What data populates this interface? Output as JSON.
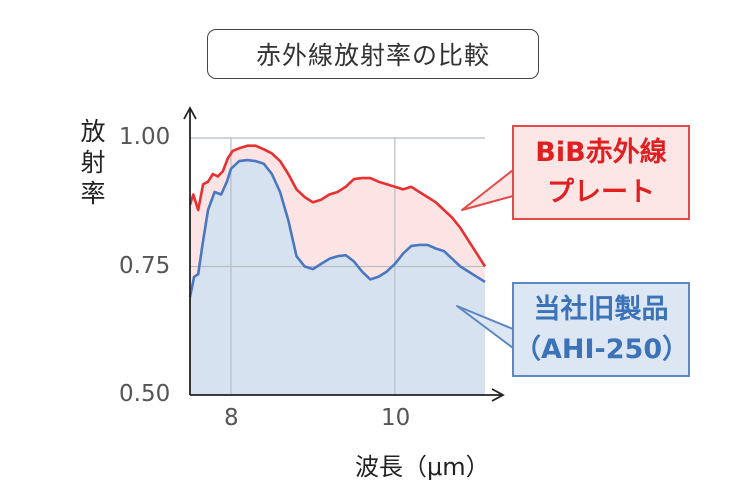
{
  "chart_data": {
    "type": "area",
    "title": "赤外線放射率の比較",
    "ylabel": [
      "放",
      "射",
      "率"
    ],
    "xlabel": "波長（μm）",
    "xlim": [
      7.5,
      11.1
    ],
    "ylim": [
      0.5,
      1.0
    ],
    "x_ticks": [
      {
        "value": 8,
        "label": "8"
      },
      {
        "value": 10,
        "label": "10"
      }
    ],
    "y_ticks": [
      {
        "value": 0.5,
        "label": "0.50"
      },
      {
        "value": 0.75,
        "label": "0.75"
      },
      {
        "value": 1.0,
        "label": "1.00"
      }
    ],
    "grid": true,
    "series": [
      {
        "name_lines": [
          "BiB赤外線",
          "プレート"
        ],
        "color": "#e83030",
        "fill": "#fce4e4",
        "points": [
          [
            7.5,
            0.87
          ],
          [
            7.54,
            0.89
          ],
          [
            7.6,
            0.86
          ],
          [
            7.66,
            0.91
          ],
          [
            7.72,
            0.915
          ],
          [
            7.78,
            0.93
          ],
          [
            7.84,
            0.925
          ],
          [
            7.9,
            0.935
          ],
          [
            7.96,
            0.96
          ],
          [
            8.02,
            0.975
          ],
          [
            8.1,
            0.98
          ],
          [
            8.2,
            0.985
          ],
          [
            8.3,
            0.985
          ],
          [
            8.4,
            0.978
          ],
          [
            8.5,
            0.97
          ],
          [
            8.6,
            0.955
          ],
          [
            8.7,
            0.93
          ],
          [
            8.8,
            0.9
          ],
          [
            8.9,
            0.885
          ],
          [
            9.0,
            0.875
          ],
          [
            9.1,
            0.88
          ],
          [
            9.2,
            0.89
          ],
          [
            9.3,
            0.895
          ],
          [
            9.4,
            0.905
          ],
          [
            9.5,
            0.92
          ],
          [
            9.6,
            0.922
          ],
          [
            9.7,
            0.922
          ],
          [
            9.8,
            0.915
          ],
          [
            9.9,
            0.91
          ],
          [
            10.0,
            0.905
          ],
          [
            10.1,
            0.9
          ],
          [
            10.2,
            0.905
          ],
          [
            10.3,
            0.895
          ],
          [
            10.4,
            0.885
          ],
          [
            10.5,
            0.875
          ],
          [
            10.6,
            0.86
          ],
          [
            10.7,
            0.845
          ],
          [
            10.8,
            0.825
          ],
          [
            10.9,
            0.8
          ],
          [
            11.0,
            0.775
          ],
          [
            11.1,
            0.75
          ]
        ]
      },
      {
        "name_lines": [
          "当社旧製品",
          "（AHI-250）"
        ],
        "color": "#4a78c0",
        "fill": "#d7e2f0",
        "points": [
          [
            7.5,
            0.69
          ],
          [
            7.55,
            0.73
          ],
          [
            7.6,
            0.735
          ],
          [
            7.65,
            0.79
          ],
          [
            7.72,
            0.86
          ],
          [
            7.8,
            0.895
          ],
          [
            7.88,
            0.89
          ],
          [
            7.95,
            0.915
          ],
          [
            8.0,
            0.94
          ],
          [
            8.1,
            0.955
          ],
          [
            8.2,
            0.957
          ],
          [
            8.3,
            0.955
          ],
          [
            8.4,
            0.95
          ],
          [
            8.5,
            0.93
          ],
          [
            8.6,
            0.895
          ],
          [
            8.7,
            0.84
          ],
          [
            8.8,
            0.77
          ],
          [
            8.9,
            0.75
          ],
          [
            9.0,
            0.745
          ],
          [
            9.1,
            0.755
          ],
          [
            9.2,
            0.765
          ],
          [
            9.3,
            0.77
          ],
          [
            9.4,
            0.772
          ],
          [
            9.5,
            0.76
          ],
          [
            9.6,
            0.74
          ],
          [
            9.7,
            0.725
          ],
          [
            9.8,
            0.73
          ],
          [
            9.9,
            0.74
          ],
          [
            10.0,
            0.755
          ],
          [
            10.1,
            0.775
          ],
          [
            10.2,
            0.79
          ],
          [
            10.3,
            0.792
          ],
          [
            10.4,
            0.792
          ],
          [
            10.5,
            0.785
          ],
          [
            10.6,
            0.78
          ],
          [
            10.7,
            0.765
          ],
          [
            10.8,
            0.75
          ],
          [
            10.9,
            0.74
          ],
          [
            11.0,
            0.73
          ],
          [
            11.1,
            0.72
          ]
        ]
      }
    ]
  }
}
